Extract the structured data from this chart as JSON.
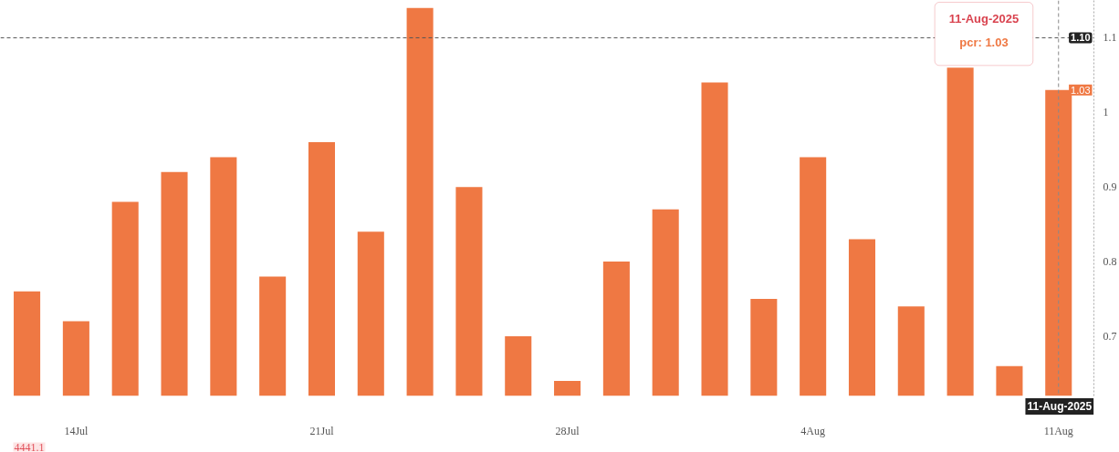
{
  "chart_data": {
    "type": "bar",
    "categories": [
      null,
      "14Jul",
      null,
      null,
      null,
      null,
      "21Jul",
      null,
      null,
      null,
      null,
      "28Jul",
      null,
      null,
      null,
      null,
      "4Aug",
      null,
      null,
      null,
      null,
      "11Aug"
    ],
    "values": [
      0.76,
      0.72,
      0.88,
      0.92,
      0.94,
      0.78,
      0.96,
      0.84,
      1.14,
      0.9,
      0.7,
      0.64,
      0.8,
      0.87,
      1.04,
      0.75,
      0.94,
      0.83,
      0.74,
      1.06,
      0.66,
      1.03
    ],
    "color": "#ef7843",
    "value_labels": [
      null,
      null,
      null,
      null,
      null,
      null,
      null,
      null,
      null,
      null,
      null,
      null,
      null,
      null,
      null,
      null,
      null,
      null,
      null,
      null,
      null,
      "1.03"
    ],
    "ylim": [
      0.62,
      1.15
    ],
    "yticks": [
      0.7,
      0.8,
      0.9,
      1,
      1.1
    ],
    "ref_lines": [
      {
        "axis": "y",
        "value": 1.1,
        "label": "1.10",
        "color": "#555555",
        "line_style": "dashed"
      },
      {
        "axis": "x",
        "value": "11Aug",
        "label": "11-Aug-2025",
        "color": "#888888",
        "line_style": "dashed"
      }
    ],
    "annotations": [
      "11-Aug-2025",
      "pcr: 1.03",
      "4441.1"
    ]
  }
}
